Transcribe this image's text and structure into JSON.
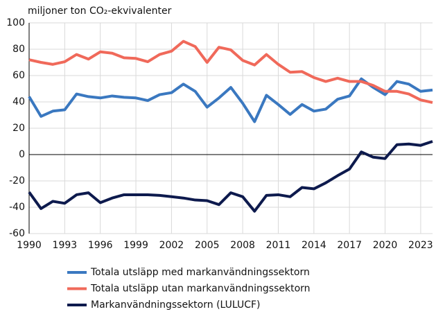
{
  "chart_data": {
    "type": "line",
    "title": "miljoner ton CO₂-ekvivalenter",
    "x": [
      1990,
      1991,
      1992,
      1993,
      1994,
      1995,
      1996,
      1997,
      1998,
      1999,
      2000,
      2001,
      2002,
      2003,
      2004,
      2005,
      2006,
      2007,
      2008,
      2009,
      2010,
      2011,
      2012,
      2013,
      2014,
      2015,
      2016,
      2017,
      2018,
      2019,
      2020,
      2021,
      2022,
      2023,
      2024
    ],
    "series": [
      {
        "name": "Totala utsläpp med markanvändningssektorn",
        "color": "#3a78c0",
        "values": [
          44,
          29,
          33,
          34,
          46,
          44,
          43,
          44.5,
          43.5,
          43,
          41,
          45.5,
          47,
          53.5,
          48,
          36,
          43,
          51,
          39,
          25,
          45,
          38,
          30.5,
          38,
          33,
          34.5,
          42,
          44.5,
          57.5,
          51,
          45.5,
          55.5,
          53.5,
          48,
          49
        ]
      },
      {
        "name": "Totala utsläpp utan markanvändningssektorn",
        "color": "#f0695a",
        "values": [
          72,
          70,
          68.5,
          70.5,
          76,
          72.5,
          78,
          77,
          73.5,
          73,
          70.5,
          76,
          78.5,
          86,
          82,
          70,
          81.5,
          79.5,
          71.5,
          68,
          76,
          68.5,
          62.5,
          63,
          58.5,
          55.5,
          58,
          55.5,
          55.5,
          52.5,
          48,
          48,
          46,
          41.5,
          39.5
        ]
      },
      {
        "name": "Markanvändningssektorn (LULUCF)",
        "color": "#0d1a4d",
        "values": [
          -28.5,
          -41,
          -35.5,
          -37,
          -30.5,
          -29,
          -36.5,
          -33,
          -30.5,
          -30.5,
          -30.5,
          -31,
          -32,
          -33,
          -34.5,
          -35,
          -38,
          -29,
          -32,
          -43,
          -31,
          -30.5,
          -32,
          -25,
          -26,
          -21.5,
          -16,
          -11,
          2,
          -2,
          -3,
          7.5,
          8,
          7,
          10
        ]
      }
    ],
    "xlim": [
      1990,
      2024
    ],
    "xticks": [
      1990,
      1993,
      1996,
      1999,
      2002,
      2005,
      2008,
      2011,
      2014,
      2017,
      2020,
      2023
    ],
    "ylim": [
      -60,
      100
    ],
    "yticks": [
      -60,
      -40,
      -20,
      0,
      20,
      40,
      60,
      80,
      100
    ],
    "grid": true,
    "legend": "bottom"
  }
}
